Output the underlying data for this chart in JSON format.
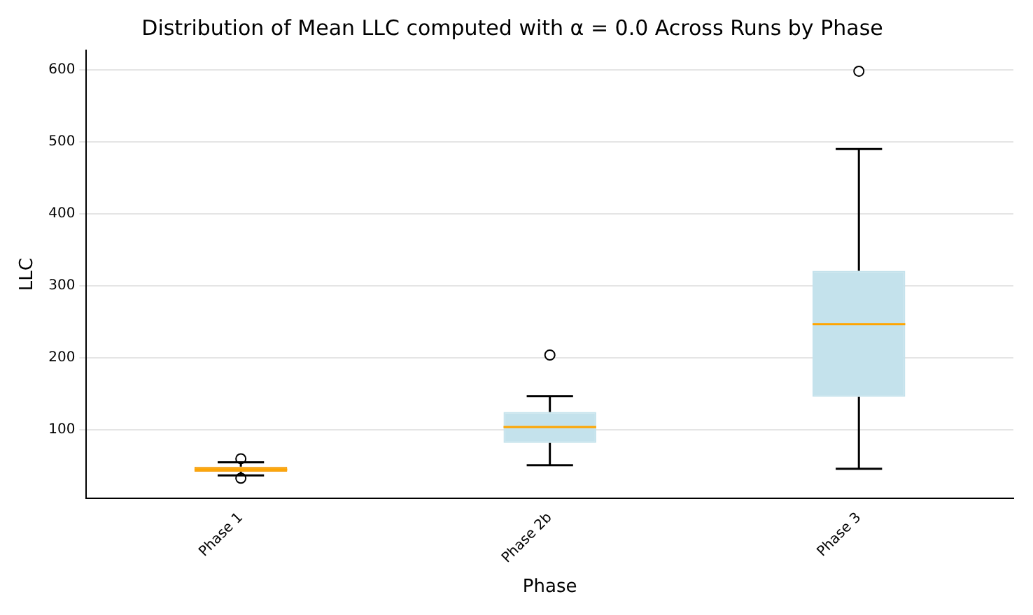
{
  "chart_data": {
    "type": "box",
    "title": "Distribution of Mean LLC computed with α = 0.0 Across Runs by Phase",
    "xlabel": "Phase",
    "ylabel": "LLC",
    "categories": [
      "Phase 1",
      "Phase 2b",
      "Phase 3"
    ],
    "colors": [
      "#f5a623",
      "#c4e2ec",
      "#c4e2ec"
    ],
    "boxes": [
      {
        "low": 37,
        "q1": 42,
        "median": 45,
        "q3": 49,
        "high": 55,
        "outliers": [
          60,
          33
        ]
      },
      {
        "low": 51,
        "q1": 82,
        "median": 104,
        "q3": 125,
        "high": 147,
        "outliers": [
          204
        ]
      },
      {
        "low": 46,
        "q1": 146,
        "median": 247,
        "q3": 321,
        "high": 490,
        "outliers": [
          598
        ]
      }
    ],
    "ylim": [
      5,
      627
    ],
    "yticks": [
      100,
      200,
      300,
      400,
      500,
      600
    ],
    "grid": "y",
    "legend": false
  }
}
